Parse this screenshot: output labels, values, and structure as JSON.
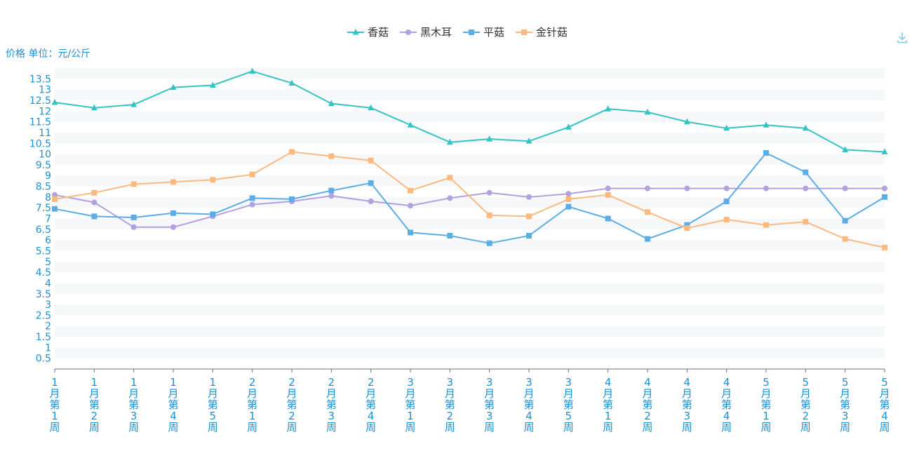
{
  "chart_data": {
    "type": "line",
    "ylabel": "价格 单位：元/公斤",
    "ylim": [
      0,
      14
    ],
    "y_ticks": [
      "0.5",
      "1",
      "1.5",
      "2",
      "2.5",
      "3",
      "3.5",
      "4",
      "4.5",
      "5",
      "5.5",
      "6",
      "6.5",
      "7",
      "7.5",
      "8",
      "8.5",
      "9",
      "9.5",
      "10",
      "10.5",
      "11",
      "11.5",
      "12",
      "12.5",
      "13",
      "13.5"
    ],
    "categories": [
      "1月第1周",
      "1月第2周",
      "1月第3周",
      "1月第4周",
      "1月第5周",
      "2月第1周",
      "2月第2周",
      "2月第3周",
      "2月第4周",
      "3月第1周",
      "3月第2周",
      "3月第3周",
      "3月第4周",
      "3月第5周",
      "4月第1周",
      "4月第2周",
      "4月第3周",
      "4月第4周",
      "5月第1周",
      "5月第2周",
      "5月第3周",
      "5月第4周"
    ],
    "legend_position": "top-center",
    "grid": "horizontal-bands",
    "series": [
      {
        "name": "香菇",
        "color": "#36c3c3",
        "marker": "triangle",
        "values": [
          12.4,
          12.15,
          12.3,
          13.1,
          13.2,
          13.85,
          13.3,
          12.35,
          12.15,
          11.35,
          10.55,
          10.7,
          10.6,
          11.25,
          12.1,
          11.95,
          11.5,
          11.2,
          11.35,
          11.2,
          10.2,
          10.1
        ]
      },
      {
        "name": "黑木耳",
        "color": "#b3a0de",
        "marker": "circle",
        "values": [
          8.1,
          7.75,
          6.6,
          6.6,
          7.1,
          7.65,
          7.8,
          8.05,
          7.8,
          7.6,
          7.95,
          8.2,
          8.0,
          8.15,
          8.4,
          8.4,
          8.4,
          8.4,
          8.4,
          8.4,
          8.4,
          8.4
        ]
      },
      {
        "name": "平菇",
        "color": "#5cade6",
        "marker": "square",
        "values": [
          7.45,
          7.1,
          7.05,
          7.25,
          7.2,
          7.95,
          7.9,
          8.3,
          8.65,
          6.35,
          6.2,
          5.85,
          6.2,
          7.55,
          7.0,
          6.05,
          6.7,
          7.8,
          10.05,
          9.15,
          6.9,
          8.0
        ]
      },
      {
        "name": "金针菇",
        "color": "#fbb97f",
        "marker": "square",
        "values": [
          7.9,
          8.2,
          8.6,
          8.7,
          8.8,
          9.05,
          10.1,
          9.9,
          9.7,
          8.3,
          8.9,
          7.15,
          7.1,
          7.9,
          8.1,
          7.3,
          6.55,
          6.95,
          6.7,
          6.85,
          6.05,
          5.65
        ]
      }
    ]
  },
  "toolbar": {
    "download_icon": "download-icon"
  }
}
